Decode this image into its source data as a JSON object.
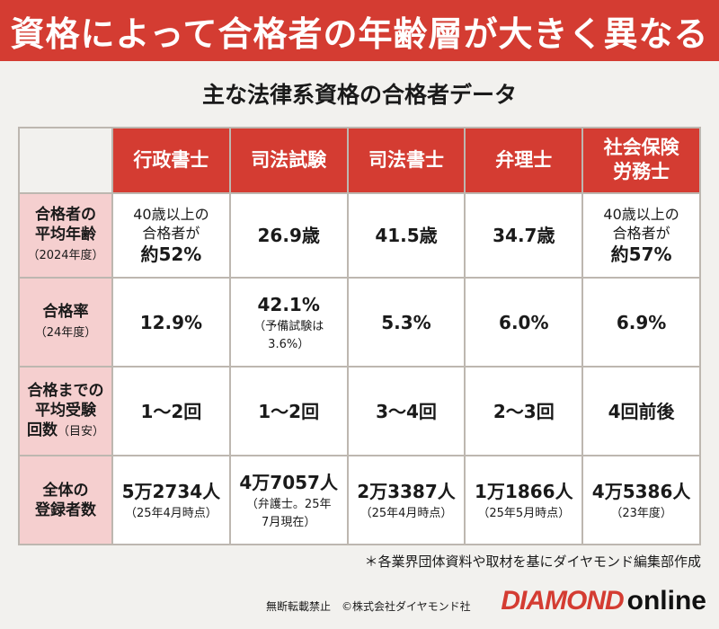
{
  "banner": "資格によって合格者の年齢層が大きく異なる",
  "subtitle": "主な法律系資格の合格者データ",
  "columns": [
    {
      "line1": "行政書士",
      "line2": ""
    },
    {
      "line1": "司法試験",
      "line2": ""
    },
    {
      "line1": "司法書士",
      "line2": ""
    },
    {
      "line1": "弁理士",
      "line2": ""
    },
    {
      "line1": "社会保険",
      "line2": "労務士"
    }
  ],
  "rows": [
    {
      "head": {
        "line1": "合格者の",
        "line2": "平均年齢",
        "sub": "（2024年度）"
      },
      "cells": [
        {
          "pre1": "40歳以上の",
          "pre2": "合格者が",
          "main": "約52%",
          "note": ""
        },
        {
          "pre1": "",
          "pre2": "",
          "main": "26.9歳",
          "note": ""
        },
        {
          "pre1": "",
          "pre2": "",
          "main": "41.5歳",
          "note": ""
        },
        {
          "pre1": "",
          "pre2": "",
          "main": "34.7歳",
          "note": ""
        },
        {
          "pre1": "40歳以上の",
          "pre2": "合格者が",
          "main": "約57%",
          "note": ""
        }
      ]
    },
    {
      "head": {
        "line1": "合格率",
        "line2": "",
        "sub": "（24年度）"
      },
      "cells": [
        {
          "main": "12.9%",
          "note1": "",
          "note2": ""
        },
        {
          "main": "42.1%",
          "note1": "（予備試験は",
          "note2": "3.6%）"
        },
        {
          "main": "5.3%",
          "note1": "",
          "note2": ""
        },
        {
          "main": "6.0%",
          "note1": "",
          "note2": ""
        },
        {
          "main": "6.9%",
          "note1": "",
          "note2": ""
        }
      ]
    },
    {
      "head": {
        "line1": "合格までの",
        "line2": "平均受験",
        "line3": "回数",
        "sub": "（目安）"
      },
      "cells": [
        {
          "main": "1～2回"
        },
        {
          "main": "1～2回"
        },
        {
          "main": "3～4回"
        },
        {
          "main": "2～3回"
        },
        {
          "main": "4回前後"
        }
      ]
    },
    {
      "head": {
        "line1": "全体の",
        "line2": "登録者数"
      },
      "cells": [
        {
          "main": "5万2734人",
          "note1": "（25年4月時点）",
          "note2": ""
        },
        {
          "main": "4万7057人",
          "note1": "（弁護士。25年",
          "note2": "7月現在）"
        },
        {
          "main": "2万3387人",
          "note1": "（25年4月時点）",
          "note2": ""
        },
        {
          "main": "1万1866人",
          "note1": "（25年5月時点）",
          "note2": ""
        },
        {
          "main": "4万5386人",
          "note1": "（23年度）",
          "note2": ""
        }
      ]
    }
  ],
  "footnote": "＊各業界団体資料や取材を基にダイヤモンド編集部作成",
  "credits": "無断転載禁止　©株式会社ダイヤモンド社",
  "logo": {
    "part1": "DIAMOND",
    "part2": "online"
  },
  "colors": {
    "accent": "#d43c32",
    "rowhead_bg": "#f5cfcf",
    "page_bg": "#f2f1ee"
  }
}
